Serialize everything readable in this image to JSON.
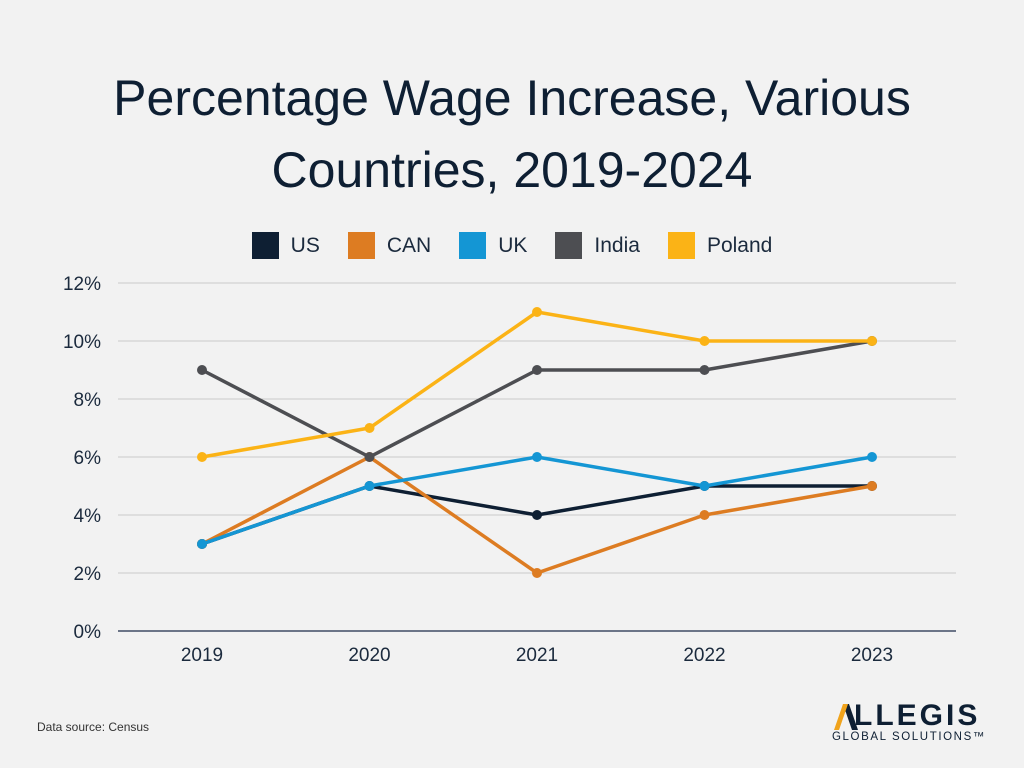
{
  "header": {
    "title_line1": "Percentage Wage Increase, Various",
    "title_line2": "Countries, 2019-2024"
  },
  "footer": {
    "source": "Data source: Census",
    "logo_main": "LLEGIS",
    "logo_sub": "GLOBAL SOLUTIONS™"
  },
  "chart_data": {
    "type": "line",
    "title": "Percentage Wage Increase, Various Countries, 2019-2024",
    "xlabel": "",
    "ylabel": "",
    "categories": [
      "2019",
      "2020",
      "2021",
      "2022",
      "2023"
    ],
    "ylim": [
      0,
      12
    ],
    "yticks": [
      "0%",
      "2%",
      "4%",
      "6%",
      "8%",
      "10%",
      "12%"
    ],
    "grid": true,
    "legend_position": "top",
    "series": [
      {
        "name": "US",
        "color": "#0e1f33",
        "values": [
          3,
          5,
          4,
          5,
          5
        ]
      },
      {
        "name": "CAN",
        "color": "#dd7c22",
        "values": [
          3,
          6,
          2,
          4,
          5
        ]
      },
      {
        "name": "UK",
        "color": "#1496d4",
        "values": [
          3,
          5,
          6,
          5,
          6
        ]
      },
      {
        "name": "India",
        "color": "#4d4e52",
        "values": [
          9,
          6,
          9,
          9,
          10
        ]
      },
      {
        "name": "Poland",
        "color": "#fbb316",
        "values": [
          6,
          7,
          11,
          10,
          10
        ]
      }
    ]
  }
}
